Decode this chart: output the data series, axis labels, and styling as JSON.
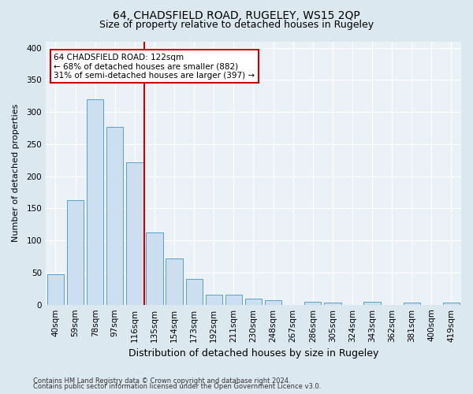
{
  "title1": "64, CHADSFIELD ROAD, RUGELEY, WS15 2QP",
  "title2": "Size of property relative to detached houses in Rugeley",
  "xlabel": "Distribution of detached houses by size in Rugeley",
  "ylabel": "Number of detached properties",
  "footer1": "Contains HM Land Registry data © Crown copyright and database right 2024.",
  "footer2": "Contains public sector information licensed under the Open Government Licence v3.0.",
  "categories": [
    "40sqm",
    "59sqm",
    "78sqm",
    "97sqm",
    "116sqm",
    "135sqm",
    "154sqm",
    "173sqm",
    "192sqm",
    "211sqm",
    "230sqm",
    "248sqm",
    "267sqm",
    "286sqm",
    "305sqm",
    "324sqm",
    "343sqm",
    "362sqm",
    "381sqm",
    "400sqm",
    "419sqm"
  ],
  "values": [
    47,
    163,
    320,
    277,
    222,
    112,
    72,
    40,
    16,
    15,
    9,
    7,
    0,
    4,
    3,
    0,
    4,
    0,
    3,
    0,
    3
  ],
  "bar_color": "#ccdff0",
  "bar_edge_color": "#5a9ec9",
  "vline_x": 4.5,
  "vline_color": "#cc0000",
  "annotation_line1": "64 CHADSFIELD ROAD: 122sqm",
  "annotation_line2": "← 68% of detached houses are smaller (882)",
  "annotation_line3": "31% of semi-detached houses are larger (397) →",
  "annotation_box_facecolor": "#ffffff",
  "annotation_box_edgecolor": "#cc0000",
  "ylim": [
    0,
    410
  ],
  "yticks": [
    0,
    50,
    100,
    150,
    200,
    250,
    300,
    350,
    400
  ],
  "bg_color": "#dce8f0",
  "plot_bg_color": "#eaf1f7",
  "title1_fontsize": 10,
  "title2_fontsize": 9,
  "xlabel_fontsize": 9,
  "ylabel_fontsize": 8,
  "tick_fontsize": 7.5,
  "annotation_fontsize": 7.5,
  "footer_fontsize": 6
}
